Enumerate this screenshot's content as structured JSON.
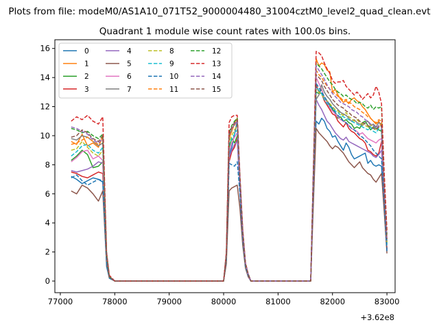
{
  "chart_data": {
    "type": "line",
    "suptitle": "Plots from file: modeM0/AS1A10_071T52_9000004480_31004cztM0_level2_quad_clean.evt",
    "title": "Quadrant 1 module wise count rates with 100.0s bins.",
    "xlabel": "",
    "ylabel": "",
    "x_offset_label": "+3.62e8",
    "xlim": [
      76900,
      83150
    ],
    "ylim": [
      -0.8,
      16.6
    ],
    "x_ticks": [
      77000,
      78000,
      79000,
      80000,
      81000,
      82000,
      83000
    ],
    "x_tick_labels": [
      "77000",
      "78000",
      "79000",
      "80000",
      "81000",
      "82000",
      "83000"
    ],
    "y_ticks": [
      0,
      2,
      4,
      6,
      8,
      10,
      12,
      14,
      16
    ],
    "y_tick_labels": [
      "0",
      "2",
      "4",
      "6",
      "8",
      "10",
      "12",
      "14",
      "16"
    ],
    "legend_position": "upper-left",
    "x": [
      77200,
      77300,
      77400,
      77500,
      77600,
      77700,
      77780,
      77850,
      77900,
      78000,
      79000,
      80000,
      80050,
      80100,
      80150,
      80200,
      80250,
      80300,
      80350,
      80400,
      80450,
      80500,
      81600,
      81650,
      81700,
      81750,
      81800,
      81850,
      81900,
      81950,
      82000,
      82050,
      82100,
      82150,
      82200,
      82250,
      82300,
      82350,
      82400,
      82450,
      82500,
      82550,
      82600,
      82650,
      82700,
      82750,
      82800,
      82850,
      82900,
      82950,
      83000
    ],
    "series": [
      {
        "name": "0",
        "color": "#1f77b4",
        "dashed": false,
        "values": [
          7.2,
          7.0,
          6.7,
          6.9,
          7.1,
          7.0,
          6.8,
          1.0,
          0.2,
          0,
          0,
          0,
          1.6,
          8.7,
          9.2,
          10.1,
          11.0,
          6.2,
          3.0,
          1.1,
          0.5,
          0,
          0,
          7.0,
          11.0,
          10.8,
          11.2,
          11.0,
          10.5,
          10.3,
          9.9,
          10.0,
          9.6,
          9.3,
          9.0,
          9.5,
          9.2,
          8.7,
          8.4,
          8.5,
          8.6,
          8.7,
          8.8,
          8.1,
          8.3,
          8.0,
          7.9,
          8.0,
          7.9,
          5.0,
          2.2
        ]
      },
      {
        "name": "1",
        "color": "#ff7f0e",
        "dashed": false,
        "values": [
          9.6,
          9.4,
          10.1,
          9.3,
          9.5,
          9.2,
          10.0,
          1.8,
          0.3,
          0,
          0,
          0,
          1.8,
          9.8,
          10.3,
          10.9,
          11.2,
          7.0,
          3.5,
          1.2,
          0.5,
          0,
          0,
          7.8,
          15.3,
          14.8,
          15.0,
          14.9,
          14.5,
          14.4,
          13.0,
          13.2,
          12.8,
          12.5,
          12.3,
          12.4,
          12.2,
          12.5,
          12.6,
          12.4,
          12.3,
          12.0,
          11.8,
          11.5,
          11.2,
          11.0,
          10.8,
          11.0,
          10.6,
          6.0,
          2.8
        ]
      },
      {
        "name": "2",
        "color": "#2ca02c",
        "dashed": false,
        "values": [
          8.3,
          8.6,
          9.0,
          8.7,
          7.8,
          7.9,
          8.2,
          1.6,
          0.3,
          0,
          0,
          0,
          1.7,
          9.2,
          9.8,
          9.5,
          10.0,
          6.6,
          3.2,
          1.1,
          0.4,
          0,
          0,
          7.2,
          13.0,
          12.9,
          13.2,
          12.6,
          12.4,
          12.1,
          11.8,
          11.6,
          11.2,
          11.3,
          11.0,
          11.1,
          10.9,
          10.8,
          10.5,
          10.6,
          10.5,
          10.9,
          11.0,
          10.7,
          10.4,
          10.6,
          10.5,
          10.4,
          10.3,
          6.2,
          2.6
        ]
      },
      {
        "name": "3",
        "color": "#d62728",
        "dashed": false,
        "values": [
          7.5,
          7.4,
          7.2,
          7.1,
          7.3,
          7.5,
          7.4,
          1.4,
          0.2,
          0,
          0,
          0,
          1.5,
          8.2,
          8.9,
          9.2,
          9.8,
          6.4,
          3.1,
          1.0,
          0.4,
          0,
          0,
          6.5,
          13.5,
          13.0,
          12.9,
          12.4,
          12.1,
          11.8,
          11.5,
          11.4,
          11.0,
          10.8,
          10.6,
          10.9,
          10.5,
          10.3,
          10.2,
          10.0,
          9.8,
          9.7,
          9.5,
          9.0,
          8.9,
          8.7,
          8.6,
          8.8,
          9.6,
          5.8,
          2.2
        ]
      },
      {
        "name": "4",
        "color": "#9467bd",
        "dashed": false,
        "values": [
          7.6,
          7.5,
          7.6,
          7.7,
          7.9,
          8.2,
          8.1,
          1.5,
          0.3,
          0,
          0,
          0,
          1.5,
          8.5,
          9.0,
          9.4,
          9.6,
          6.3,
          3.0,
          1.0,
          0.4,
          0,
          0,
          6.8,
          12.5,
          12.1,
          11.8,
          11.4,
          11.0,
          10.8,
          10.5,
          10.2,
          10.0,
          9.8,
          9.7,
          9.9,
          9.6,
          9.5,
          9.4,
          9.3,
          9.2,
          9.1,
          9.0,
          8.9,
          8.8,
          8.6,
          8.5,
          8.7,
          9.0,
          5.6,
          2.1
        ]
      },
      {
        "name": "5",
        "color": "#8c564b",
        "dashed": false,
        "values": [
          6.2,
          6.0,
          6.6,
          6.4,
          6.0,
          5.5,
          6.2,
          1.2,
          0.2,
          0,
          0,
          0,
          1.2,
          6.2,
          6.4,
          6.5,
          6.6,
          5.0,
          2.5,
          0.9,
          0.3,
          0,
          0,
          5.5,
          10.5,
          10.2,
          10.0,
          9.8,
          9.6,
          9.3,
          9.1,
          9.3,
          9.2,
          9.0,
          8.8,
          8.5,
          8.2,
          8.0,
          7.8,
          8.0,
          8.2,
          7.8,
          7.6,
          7.4,
          7.3,
          7.0,
          6.8,
          7.1,
          7.4,
          4.8,
          1.9
        ]
      },
      {
        "name": "6",
        "color": "#e377c2",
        "dashed": false,
        "values": [
          8.2,
          8.5,
          8.9,
          9.0,
          8.4,
          8.6,
          8.3,
          1.6,
          0.3,
          0,
          0,
          0,
          1.6,
          8.9,
          9.5,
          9.9,
          10.2,
          6.8,
          3.2,
          1.1,
          0.4,
          0,
          0,
          7.0,
          14.0,
          13.6,
          13.2,
          12.6,
          12.3,
          11.9,
          11.7,
          11.5,
          11.3,
          11.1,
          11.0,
          10.9,
          10.7,
          10.5,
          10.4,
          10.3,
          10.1,
          10.2,
          10.0,
          9.8,
          9.7,
          9.6,
          9.5,
          9.7,
          9.8,
          6.0,
          2.5
        ]
      },
      {
        "name": "7",
        "color": "#7f7f7f",
        "dashed": false,
        "values": [
          9.8,
          9.7,
          10.0,
          9.9,
          9.6,
          9.3,
          9.5,
          1.8,
          0.3,
          0,
          0,
          0,
          1.8,
          10.0,
          10.4,
          10.8,
          11.0,
          7.0,
          3.4,
          1.2,
          0.5,
          0,
          0,
          7.5,
          12.5,
          12.8,
          13.5,
          13.0,
          12.7,
          12.5,
          12.2,
          12.0,
          11.8,
          11.6,
          11.5,
          11.4,
          11.2,
          11.0,
          11.1,
          10.9,
          10.8,
          10.7,
          10.9,
          11.0,
          10.7,
          10.8,
          10.6,
          10.9,
          10.8,
          6.3,
          2.7
        ]
      },
      {
        "name": "8",
        "color": "#bcbd22",
        "dashed": true,
        "values": [
          9.0,
          9.1,
          9.6,
          9.2,
          8.8,
          8.6,
          9.0,
          1.7,
          0.3,
          0,
          0,
          0,
          1.7,
          9.6,
          10.0,
          10.4,
          10.7,
          6.9,
          3.3,
          1.1,
          0.5,
          0,
          0,
          7.3,
          13.2,
          13.0,
          12.8,
          12.6,
          12.4,
          12.2,
          12.0,
          11.8,
          11.7,
          11.5,
          11.4,
          11.6,
          11.3,
          11.2,
          11.0,
          11.1,
          10.9,
          10.8,
          10.7,
          10.6,
          10.8,
          10.5,
          10.4,
          10.6,
          10.7,
          6.2,
          2.6
        ]
      },
      {
        "name": "9",
        "color": "#17becf",
        "dashed": true,
        "values": [
          8.6,
          8.9,
          9.3,
          9.4,
          9.0,
          8.8,
          9.2,
          1.7,
          0.3,
          0,
          0,
          0,
          1.7,
          9.4,
          9.8,
          10.1,
          10.4,
          6.8,
          3.3,
          1.1,
          0.4,
          0,
          0,
          7.2,
          13.4,
          13.1,
          12.9,
          12.5,
          12.2,
          12.0,
          11.9,
          11.7,
          11.6,
          11.4,
          11.3,
          11.2,
          11.1,
          11.0,
          10.9,
          10.8,
          10.7,
          10.6,
          10.5,
          10.4,
          10.6,
          10.3,
          10.2,
          10.5,
          10.4,
          6.1,
          2.5
        ]
      },
      {
        "name": "10",
        "color": "#1f77b4",
        "dashed": true,
        "values": [
          7.1,
          7.3,
          6.9,
          6.6,
          6.8,
          7.0,
          6.9,
          1.3,
          0.2,
          0,
          0,
          0,
          1.5,
          8.1,
          8.0,
          7.9,
          8.2,
          6.0,
          2.9,
          1.0,
          0.4,
          0,
          0,
          6.6,
          13.6,
          13.3,
          13.0,
          12.7,
          12.4,
          12.1,
          11.9,
          11.6,
          11.4,
          11.2,
          11.0,
          10.9,
          10.7,
          10.5,
          10.4,
          10.2,
          10.0,
          9.9,
          9.7,
          9.5,
          9.3,
          9.0,
          8.8,
          8.6,
          8.4,
          5.4,
          2.0
        ]
      },
      {
        "name": "11",
        "color": "#ff7f0e",
        "dashed": true,
        "values": [
          9.4,
          9.5,
          9.7,
          9.9,
          9.6,
          9.4,
          9.8,
          1.8,
          0.3,
          0,
          0,
          0,
          1.8,
          9.9,
          10.4,
          10.7,
          11.1,
          7.0,
          3.4,
          1.2,
          0.5,
          0,
          0,
          7.6,
          14.5,
          14.2,
          14.0,
          13.7,
          13.4,
          13.2,
          13.0,
          12.9,
          12.7,
          12.6,
          12.4,
          12.5,
          12.3,
          12.2,
          12.0,
          11.9,
          11.8,
          11.6,
          11.5,
          11.3,
          11.2,
          11.0,
          10.9,
          11.1,
          11.0,
          6.4,
          2.9
        ]
      },
      {
        "name": "12",
        "color": "#2ca02c",
        "dashed": true,
        "values": [
          10.5,
          10.4,
          10.2,
          10.3,
          10.0,
          9.8,
          10.1,
          1.9,
          0.3,
          0,
          0,
          0,
          1.9,
          10.2,
          10.7,
          11.0,
          11.2,
          7.1,
          3.5,
          1.2,
          0.5,
          0,
          0,
          7.8,
          15.0,
          14.8,
          14.6,
          14.3,
          14.0,
          13.7,
          13.5,
          13.2,
          13.0,
          12.9,
          12.7,
          12.8,
          12.6,
          12.5,
          12.4,
          12.2,
          12.3,
          12.2,
          12.0,
          11.9,
          12.1,
          11.8,
          12.0,
          11.9,
          12.0,
          7.0,
          3.2
        ]
      },
      {
        "name": "13",
        "color": "#d62728",
        "dashed": true,
        "values": [
          11.0,
          11.3,
          11.1,
          11.4,
          11.0,
          10.8,
          11.3,
          2.0,
          0.4,
          0,
          0,
          0,
          2.0,
          10.9,
          11.3,
          11.4,
          11.4,
          7.3,
          3.6,
          1.3,
          0.5,
          0,
          0,
          8.0,
          15.8,
          15.7,
          15.5,
          15.0,
          14.6,
          14.3,
          13.8,
          13.6,
          13.7,
          13.7,
          13.8,
          13.4,
          13.2,
          13.0,
          12.8,
          13.0,
          12.8,
          12.5,
          12.7,
          12.9,
          12.6,
          12.8,
          13.4,
          13.0,
          12.2,
          7.5,
          3.5
        ]
      },
      {
        "name": "14",
        "color": "#9467bd",
        "dashed": true,
        "values": [
          10.6,
          10.5,
          10.3,
          10.1,
          9.7,
          9.5,
          9.8,
          1.9,
          0.3,
          0,
          0,
          0,
          1.9,
          10.0,
          10.5,
          10.8,
          11.0,
          7.0,
          3.4,
          1.2,
          0.5,
          0,
          0,
          7.7,
          14.8,
          14.5,
          14.2,
          13.9,
          13.5,
          13.2,
          12.9,
          12.7,
          12.5,
          12.3,
          12.2,
          12.1,
          12.0,
          11.8,
          11.7,
          11.6,
          11.4,
          11.3,
          11.1,
          11.0,
          10.8,
          10.7,
          10.5,
          10.7,
          10.6,
          6.3,
          2.8
        ]
      },
      {
        "name": "15",
        "color": "#8c564b",
        "dashed": true,
        "values": [
          9.9,
          10.0,
          10.4,
          10.2,
          9.8,
          9.6,
          10.0,
          1.9,
          0.3,
          0,
          0,
          0,
          1.9,
          10.1,
          10.6,
          10.9,
          11.1,
          7.1,
          3.5,
          1.2,
          0.5,
          0,
          0,
          7.9,
          14.2,
          14.0,
          13.8,
          13.4,
          13.1,
          12.8,
          12.5,
          12.3,
          12.1,
          12.0,
          11.9,
          11.7,
          11.6,
          11.4,
          11.3,
          11.2,
          11.0,
          10.9,
          10.8,
          10.7,
          10.6,
          10.5,
          10.4,
          10.6,
          10.7,
          6.4,
          2.9
        ]
      }
    ]
  }
}
